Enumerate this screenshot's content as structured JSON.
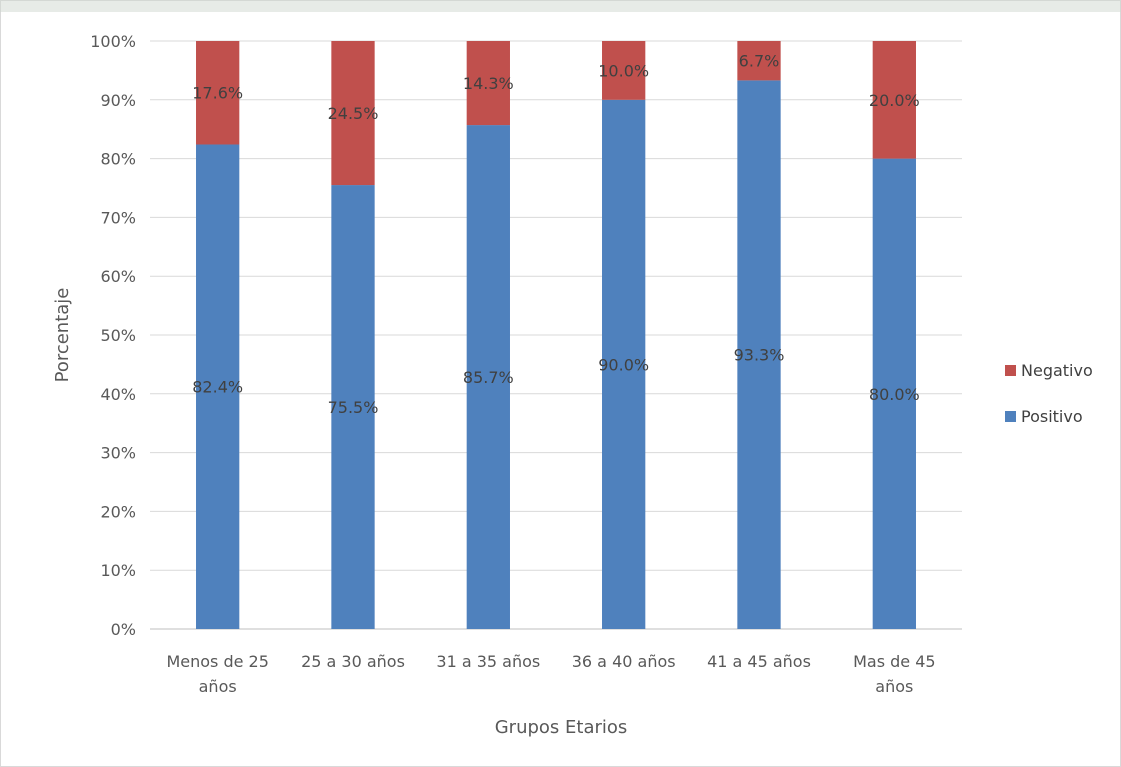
{
  "chart_data": {
    "type": "bar",
    "stacked": true,
    "categories": [
      [
        "Menos de 25",
        "años"
      ],
      [
        "25 a 30 años"
      ],
      [
        "31 a 35 años"
      ],
      [
        "36 a 40 años"
      ],
      [
        "41 a 45 años"
      ],
      [
        "Mas de 45",
        "años"
      ]
    ],
    "series": [
      {
        "name": "Positivo",
        "values": [
          82.4,
          75.5,
          85.7,
          90.0,
          93.3,
          80.0
        ],
        "labels": [
          "82.4%",
          "75.5%",
          "85.7%",
          "90.0%",
          "93.3%",
          "80.0%"
        ],
        "color": "#4f81bd"
      },
      {
        "name": "Negativo",
        "values": [
          17.6,
          24.5,
          14.3,
          10.0,
          6.7,
          20.0
        ],
        "labels": [
          "17.6%",
          "24.5%",
          "14.3%",
          "10.0%",
          "6.7%",
          "20.0%"
        ],
        "color": "#c0504d"
      }
    ],
    "xlabel": "Grupos Etarios",
    "ylabel": "Porcentaje",
    "ylim": [
      0,
      100
    ],
    "yticks": [
      "0%",
      "10%",
      "20%",
      "30%",
      "40%",
      "50%",
      "60%",
      "70%",
      "80%",
      "90%",
      "100%"
    ],
    "grid": true,
    "legend": {
      "position": "right",
      "entries": [
        "Negativo",
        "Positivo"
      ]
    }
  }
}
